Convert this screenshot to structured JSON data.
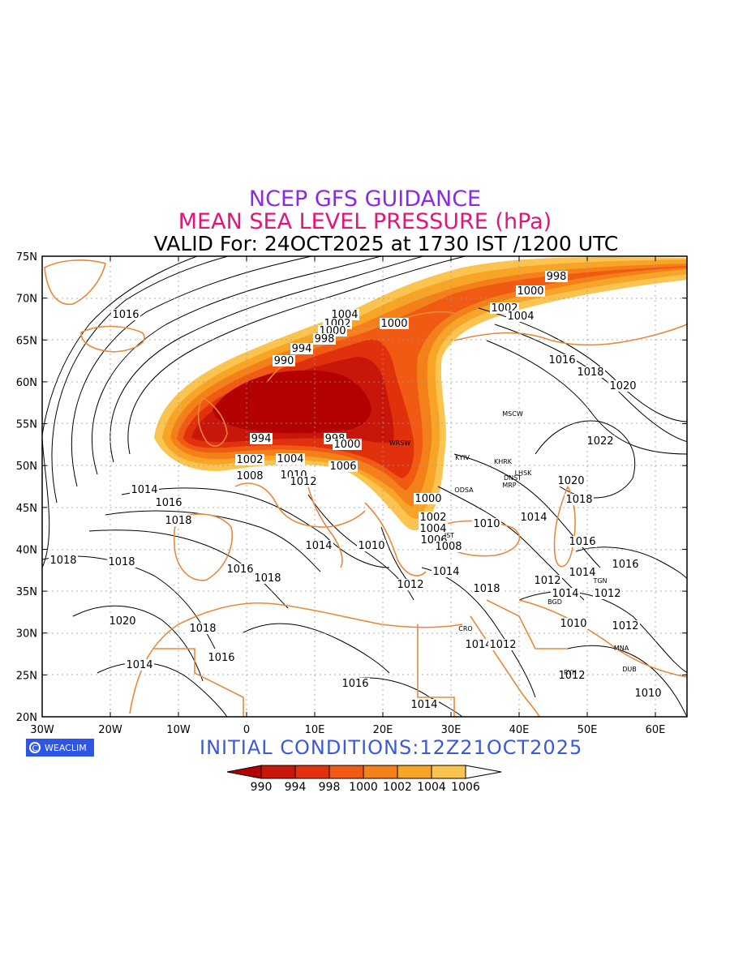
{
  "header": {
    "line1": "NCEP GFS GUIDANCE",
    "line2": "MEAN SEA LEVEL PRESSURE (hPa)",
    "line3": "VALID For: 24OCT2025 at 1730 IST /1200 UTC"
  },
  "footer": {
    "badge": "WEACLIM",
    "initial_conditions": "INITIAL  CONDITIONS:12Z21OCT2025"
  },
  "colors": {
    "coastline": "#e8883a",
    "contour": "#000000",
    "frame": "#000000"
  },
  "axes": {
    "lat_labels": [
      "75N",
      "70N",
      "65N",
      "60N",
      "55N",
      "50N",
      "45N",
      "40N",
      "35N",
      "30N",
      "25N",
      "20N"
    ],
    "lon_labels": [
      "30W",
      "20W",
      "10W",
      "0",
      "10E",
      "20E",
      "30E",
      "40E",
      "50E",
      "60E"
    ]
  },
  "colorbar": {
    "levels": [
      "990",
      "994",
      "998",
      "1000",
      "1002",
      "1004",
      "1006"
    ],
    "colors": [
      "#b30000",
      "#c8160a",
      "#e0300c",
      "#f05a12",
      "#f4801a",
      "#f8a426",
      "#fbc450",
      "#ffffff"
    ]
  },
  "contour_labels": [
    {
      "text": "998"
    },
    {
      "text": "1000"
    },
    {
      "text": "1002"
    },
    {
      "text": "1004"
    },
    {
      "text": "1016"
    },
    {
      "text": "1004"
    },
    {
      "text": "1002"
    },
    {
      "text": "1000"
    },
    {
      "text": "998"
    },
    {
      "text": "994"
    },
    {
      "text": "990"
    },
    {
      "text": "1000"
    },
    {
      "text": "1016"
    },
    {
      "text": "1018"
    },
    {
      "text": "1020"
    },
    {
      "text": "994"
    },
    {
      "text": "998"
    },
    {
      "text": "1000"
    },
    {
      "text": "1022"
    },
    {
      "text": "1002"
    },
    {
      "text": "1004"
    },
    {
      "text": "1006"
    },
    {
      "text": "1008"
    },
    {
      "text": "1010"
    },
    {
      "text": "1012"
    },
    {
      "text": "1014"
    },
    {
      "text": "1016"
    },
    {
      "text": "1018"
    },
    {
      "text": "1020"
    },
    {
      "text": "1018"
    },
    {
      "text": "1000"
    },
    {
      "text": "1002"
    },
    {
      "text": "1004"
    },
    {
      "text": "1006"
    },
    {
      "text": "1008"
    },
    {
      "text": "1010"
    },
    {
      "text": "1014"
    },
    {
      "text": "1010"
    },
    {
      "text": "1014"
    },
    {
      "text": "1016"
    },
    {
      "text": "1018"
    },
    {
      "text": "1018"
    },
    {
      "text": "1016"
    },
    {
      "text": "1018"
    },
    {
      "text": "1012"
    },
    {
      "text": "1014"
    },
    {
      "text": "1012"
    },
    {
      "text": "1014"
    },
    {
      "text": "1014"
    },
    {
      "text": "1016"
    },
    {
      "text": "1014"
    },
    {
      "text": "1012"
    },
    {
      "text": "1020"
    },
    {
      "text": "1018"
    },
    {
      "text": "1016"
    },
    {
      "text": "1014"
    },
    {
      "text": "1016"
    },
    {
      "text": "1014"
    },
    {
      "text": "1012"
    },
    {
      "text": "1010"
    },
    {
      "text": "1012"
    },
    {
      "text": "1014"
    },
    {
      "text": "1012"
    },
    {
      "text": "1010"
    },
    {
      "text": "1018"
    }
  ],
  "cities": [
    "MSCW",
    "WRSW",
    "KYIV",
    "KHRK",
    "LHSK",
    "DNST",
    "MRP",
    "ODSA",
    "IST",
    "CRO",
    "BGD",
    "TGN",
    "RYH",
    "MNA",
    "DUB"
  ]
}
